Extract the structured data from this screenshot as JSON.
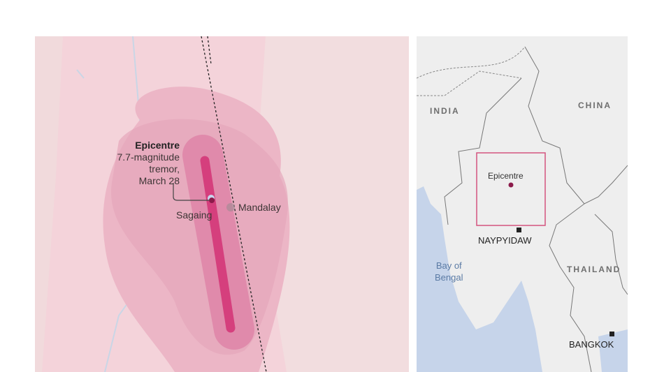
{
  "detail_map": {
    "epicentre": {
      "title": "Epicentre",
      "line1": "7.7-magnitude",
      "line2": "tremor,",
      "line3": "March 28"
    },
    "places": [
      "Sagaing",
      "Mandalay"
    ],
    "colors": {
      "base": "#f4d3da",
      "outer": "#ecb6c6",
      "middle": "#e48fae",
      "inner": "#d53f7d",
      "epicentre": "#8b1a4a"
    }
  },
  "locator_map": {
    "countries": [
      "INDIA",
      "CHINA",
      "THAILAND"
    ],
    "sea": "Bay of Bengal",
    "sea_line1": "Bay of",
    "sea_line2": "Bengal",
    "box_label": "Epicentre",
    "cities": [
      "NAYPYIDAW",
      "BANGKOK"
    ],
    "colors": {
      "land": "#eeeeee",
      "sea": "#c6d4ea",
      "box": "#d4547f"
    }
  }
}
